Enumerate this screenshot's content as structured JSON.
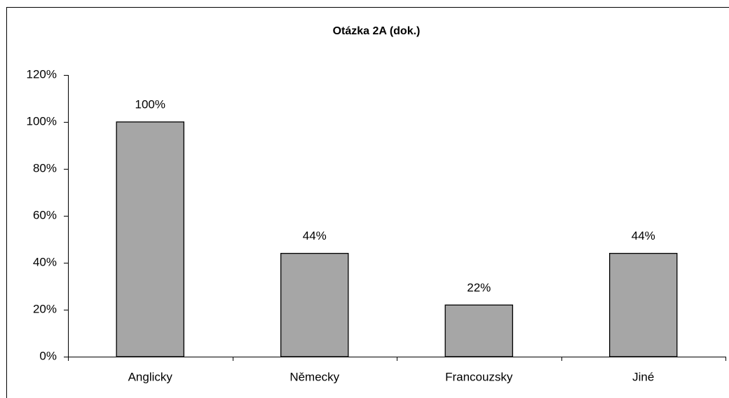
{
  "chart_data": {
    "type": "bar",
    "title": "Otázka 2A (dok.)",
    "categories": [
      "Anglicky",
      "Německy",
      "Francouzsky",
      "Jiné"
    ],
    "values": [
      100,
      44,
      22,
      44
    ],
    "value_labels": [
      "100%",
      "44%",
      "22%",
      "44%"
    ],
    "color": "#a6a6a6",
    "ylim": [
      0,
      120
    ],
    "yticks": [
      {
        "value": 0,
        "label": "0%"
      },
      {
        "value": 20,
        "label": "20%"
      },
      {
        "value": 40,
        "label": "40%"
      },
      {
        "value": 60,
        "label": "60%"
      },
      {
        "value": 80,
        "label": "80%"
      },
      {
        "value": 100,
        "label": "100%"
      },
      {
        "value": 120,
        "label": "120%"
      }
    ],
    "grid": false
  }
}
